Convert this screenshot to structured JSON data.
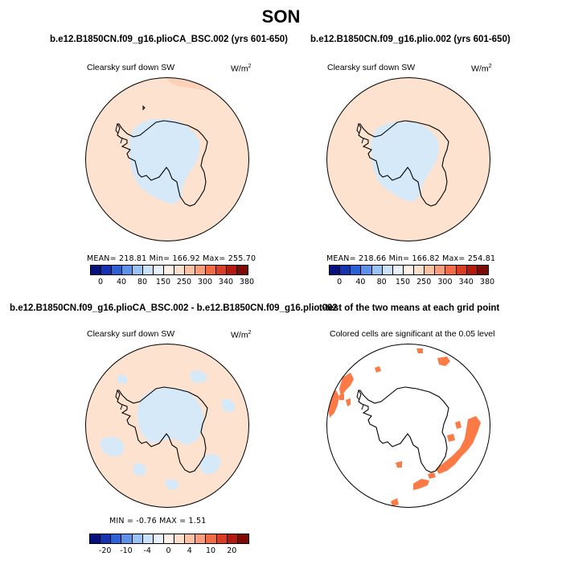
{
  "season": "SON",
  "colors": {
    "ocean_land": "#fde3cf",
    "ice_blue": "#d6e9f9",
    "warm_peach": "#fbd2b8",
    "significant": "#fb7a45",
    "coast": "#000000"
  },
  "panels": [
    {
      "title": "b.e12.B1850CN.f09_g16.plioCA_BSC.002 (yrs 601-650)",
      "variable": "Clearsky surf down SW",
      "unit": "W/m",
      "unit_exp": "2",
      "stats": "MEAN= 218.81   Min= 166.92   Max= 255.70",
      "colorbar": {
        "labels": [
          "0",
          "40",
          "80",
          "150",
          "250",
          "300",
          "340",
          "380"
        ],
        "colors": [
          "#06107d",
          "#1532b1",
          "#2c60d6",
          "#5d92ea",
          "#98c3f4",
          "#cbe1f9",
          "#e9f2fc",
          "#fef1e7",
          "#fde0cc",
          "#fcc2a4",
          "#fa9d78",
          "#f46a45",
          "#da3d21",
          "#b41a0e",
          "#7c0b04"
        ]
      }
    },
    {
      "title": "b.e12.B1850CN.f09_g16.plio.002 (yrs 601-650)",
      "variable": "Clearsky surf down SW",
      "unit": "W/m",
      "unit_exp": "2",
      "stats": "MEAN= 218.66   Min= 166.82   Max= 254.81",
      "colorbar": {
        "labels": [
          "0",
          "40",
          "80",
          "150",
          "250",
          "300",
          "340",
          "380"
        ],
        "colors": [
          "#06107d",
          "#1532b1",
          "#2c60d6",
          "#5d92ea",
          "#98c3f4",
          "#cbe1f9",
          "#e9f2fc",
          "#fef1e7",
          "#fde0cc",
          "#fcc2a4",
          "#fa9d78",
          "#f46a45",
          "#da3d21",
          "#b41a0e",
          "#7c0b04"
        ]
      }
    },
    {
      "title": "b.e12.B1850CN.f09_g16.plioCA_BSC.002 - b.e12.B1850CN.f09_g16.plio.002",
      "variable": "Clearsky surf down SW",
      "unit": "W/m",
      "unit_exp": "2",
      "stats": "MIN =   -0.76  MAX =    1.51",
      "colorbar": {
        "labels": [
          "-20",
          "-10",
          "-4",
          "0",
          "4",
          "10",
          "20"
        ],
        "colors": [
          "#06107d",
          "#1532b1",
          "#2c60d6",
          "#5d92ea",
          "#98c3f4",
          "#cbe1f9",
          "#e9f2fc",
          "#fef1e7",
          "#fde0cc",
          "#fcc2a4",
          "#fa9d78",
          "#f46a45",
          "#da3d21",
          "#b41a0e",
          "#7c0b04"
        ]
      }
    },
    {
      "title": "t-test of the two means at each grid point",
      "variable": "Colored cells are significant at the 0.05 level"
    }
  ]
}
